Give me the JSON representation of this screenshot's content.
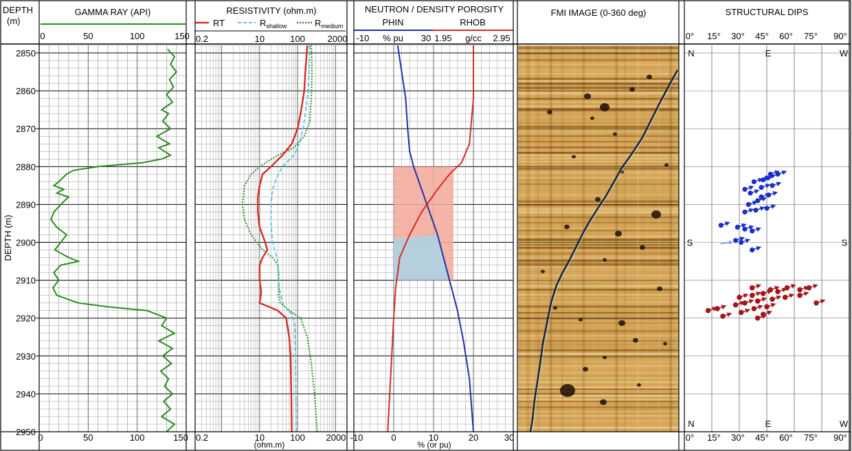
{
  "depth": {
    "title_line1": "DEPTH",
    "title_line2": "(m)",
    "axis_label": "DEPTH (m)",
    "range": [
      2848,
      2950
    ],
    "ticks": [
      2850,
      2860,
      2870,
      2880,
      2890,
      2900,
      2910,
      2920,
      2930,
      2940,
      2950
    ]
  },
  "gamma": {
    "title": "GAMMA RAY (API)",
    "range": [
      0,
      150
    ],
    "top_ticks": [
      "0",
      "50",
      "100",
      "150"
    ],
    "bottom_ticks": [
      "0",
      "50",
      "100",
      "150"
    ],
    "color": "#2a8a1f"
  },
  "resistivity": {
    "title": "RESISTIVITY (ohm.m)",
    "range": [
      0.2,
      2000
    ],
    "scale": "log",
    "top_ticks": [
      "0.2",
      "10",
      "100",
      "2000"
    ],
    "bottom_ticks": [
      "0.2",
      "10",
      "100",
      "2000"
    ],
    "bottom_label": "(ohm.m)",
    "legend": {
      "rt": "RT",
      "rs_main": "R",
      "rs_sub": "shallow",
      "rm_main": "R",
      "rm_sub": "medium"
    },
    "colors": {
      "rt": "#d42a23",
      "shallow": "#5bc3db",
      "medium": "#2a8a1f"
    }
  },
  "porosity": {
    "title": "NEUTRON / DENSITY POROSITY",
    "phin_label": "PHIN",
    "rhob_label": "RHOB",
    "phin_scale": [
      "-10",
      "% pu",
      "30"
    ],
    "rhob_scale": [
      "1.95",
      "g/cc",
      "2.95"
    ],
    "range": [
      -10,
      30
    ],
    "bottom_ticks": [
      "-10",
      "0",
      "10",
      "20",
      "30"
    ],
    "bottom_label": "% (or pu)",
    "colors": {
      "phin": "#1f2fa8",
      "rhob": "#d42a23",
      "gas_fill": "#f4a89a",
      "crossover_fill": "#a9d3e6"
    }
  },
  "fmi": {
    "title": "FMI IMAGE (0-360 deg)",
    "colors": {
      "dark": "#6b3a0c",
      "mid": "#c48431",
      "light": "#f0d49a"
    }
  },
  "dips": {
    "title": "STRUCTURAL DIPS",
    "range": [
      0,
      90
    ],
    "ticks": [
      "0°",
      "15°",
      "30°",
      "45°",
      "60°",
      "75°",
      "90°"
    ],
    "azimuth_top": [
      "N",
      "E",
      "W"
    ],
    "azimuth_mid": [
      "S",
      "S"
    ],
    "azimuth_bottom": [
      "N",
      "E",
      "W"
    ],
    "colors": {
      "blue": "#1b2fc8",
      "red": "#a3171a",
      "faint": "#8fa8e8"
    }
  },
  "chart_data": [
    {
      "type": "line",
      "title": "GAMMA RAY (API)",
      "xlabel": "",
      "ylabel": "DEPTH (m)",
      "xlim": [
        0,
        150
      ],
      "ylim": [
        2950,
        2848
      ],
      "series": [
        {
          "values": [
            [
              131,
              2849
            ],
            [
              138,
              2851
            ],
            [
              134,
              2853
            ],
            [
              140,
              2855
            ],
            [
              133,
              2857
            ],
            [
              137,
              2859
            ],
            [
              130,
              2861
            ],
            [
              136,
              2863
            ],
            [
              125,
              2865
            ],
            [
              132,
              2866
            ],
            [
              126,
              2868
            ],
            [
              134,
              2870
            ],
            [
              120,
              2872
            ],
            [
              133,
              2874
            ],
            [
              122,
              2875
            ],
            [
              134,
              2877
            ],
            [
              125,
              2878
            ],
            [
              105,
              2879
            ],
            [
              60,
              2880
            ],
            [
              35,
              2881
            ],
            [
              28,
              2882
            ],
            [
              20,
              2884
            ],
            [
              15,
              2885
            ],
            [
              25,
              2886
            ],
            [
              18,
              2887
            ],
            [
              30,
              2888
            ],
            [
              22,
              2890
            ],
            [
              15,
              2892
            ],
            [
              12,
              2894
            ],
            [
              18,
              2896
            ],
            [
              28,
              2898
            ],
            [
              22,
              2900
            ],
            [
              16,
              2902
            ],
            [
              30,
              2904
            ],
            [
              40,
              2905
            ],
            [
              22,
              2906
            ],
            [
              15,
              2908
            ],
            [
              20,
              2910
            ],
            [
              14,
              2912
            ],
            [
              18,
              2914
            ],
            [
              40,
              2916
            ],
            [
              70,
              2917
            ],
            [
              110,
              2918
            ],
            [
              130,
              2920
            ],
            [
              125,
              2922
            ],
            [
              138,
              2924
            ],
            [
              122,
              2926
            ],
            [
              136,
              2928
            ],
            [
              126,
              2930
            ],
            [
              135,
              2932
            ],
            [
              124,
              2934
            ],
            [
              132,
              2936
            ],
            [
              128,
              2938
            ],
            [
              136,
              2940
            ],
            [
              127,
              2942
            ],
            [
              134,
              2944
            ],
            [
              125,
              2946
            ],
            [
              138,
              2948
            ],
            [
              130,
              2950
            ]
          ]
        }
      ]
    },
    {
      "type": "line",
      "title": "RESISTIVITY (ohm.m)",
      "xlabel": "(ohm.m)",
      "ylabel": "DEPTH (m)",
      "xscale": "log",
      "xlim": [
        0.2,
        2000
      ],
      "ylim": [
        2950,
        2848
      ],
      "series": [
        {
          "name": "RT",
          "values": [
            [
              180,
              2848
            ],
            [
              160,
              2855
            ],
            [
              150,
              2860
            ],
            [
              120,
              2866
            ],
            [
              100,
              2870
            ],
            [
              70,
              2874
            ],
            [
              40,
              2877
            ],
            [
              20,
              2880
            ],
            [
              12,
              2882
            ],
            [
              10,
              2885
            ],
            [
              9,
              2888
            ],
            [
              9,
              2892
            ],
            [
              10,
              2896
            ],
            [
              14,
              2900
            ],
            [
              16,
              2902
            ],
            [
              12,
              2904
            ],
            [
              10,
              2906
            ],
            [
              10,
              2910
            ],
            [
              11,
              2913
            ],
            [
              10,
              2916
            ],
            [
              30,
              2918
            ],
            [
              50,
              2920
            ],
            [
              60,
              2925
            ],
            [
              65,
              2930
            ],
            [
              68,
              2940
            ],
            [
              70,
              2950
            ]
          ]
        },
        {
          "name": "Rshallow",
          "values": [
            [
              210,
              2848
            ],
            [
              200,
              2855
            ],
            [
              190,
              2860
            ],
            [
              160,
              2866
            ],
            [
              140,
              2870
            ],
            [
              110,
              2874
            ],
            [
              80,
              2877
            ],
            [
              40,
              2880
            ],
            [
              28,
              2883
            ],
            [
              22,
              2886
            ],
            [
              20,
              2890
            ],
            [
              20,
              2895
            ],
            [
              22,
              2900
            ],
            [
              30,
              2905
            ],
            [
              32,
              2908
            ],
            [
              33,
              2912
            ],
            [
              40,
              2916
            ],
            [
              70,
              2919
            ],
            [
              85,
              2922
            ],
            [
              88,
              2930
            ],
            [
              90,
              2940
            ],
            [
              92,
              2950
            ]
          ]
        },
        {
          "name": "Rmedium",
          "values": [
            [
              230,
              2848
            ],
            [
              240,
              2855
            ],
            [
              230,
              2862
            ],
            [
              210,
              2868
            ],
            [
              150,
              2872
            ],
            [
              80,
              2875
            ],
            [
              30,
              2877
            ],
            [
              10,
              2880
            ],
            [
              6,
              2882
            ],
            [
              4,
              2885
            ],
            [
              3.5,
              2890
            ],
            [
              4,
              2894
            ],
            [
              6,
              2898
            ],
            [
              12,
              2902
            ],
            [
              22,
              2904
            ],
            [
              30,
              2906
            ],
            [
              32,
              2910
            ],
            [
              32,
              2914
            ],
            [
              35,
              2916
            ],
            [
              60,
              2918
            ],
            [
              120,
              2920
            ],
            [
              180,
              2925
            ],
            [
              230,
              2932
            ],
            [
              280,
              2940
            ],
            [
              330,
              2950
            ]
          ]
        }
      ]
    },
    {
      "type": "line",
      "title": "NEUTRON / DENSITY POROSITY",
      "xlabel": "% (or pu)",
      "ylabel": "DEPTH (m)",
      "xlim": [
        -10,
        30
      ],
      "ylim": [
        2950,
        2848
      ],
      "series": [
        {
          "name": "PHIN",
          "values": [
            [
              1,
              2848
            ],
            [
              2,
              2855
            ],
            [
              3,
              2862
            ],
            [
              3.5,
              2870
            ],
            [
              4,
              2876
            ],
            [
              5,
              2880
            ],
            [
              7,
              2886
            ],
            [
              9,
              2892
            ],
            [
              11,
              2898
            ],
            [
              12.5,
              2904
            ],
            [
              14,
              2910
            ],
            [
              16,
              2918
            ],
            [
              17.5,
              2926
            ],
            [
              19,
              2936
            ],
            [
              20,
              2950
            ]
          ]
        },
        {
          "name": "RHOB",
          "values": [
            [
              20,
              2848
            ],
            [
              20,
              2856
            ],
            [
              20,
              2862
            ],
            [
              19.5,
              2868
            ],
            [
              19,
              2874
            ],
            [
              17,
              2879
            ],
            [
              14,
              2882
            ],
            [
              11,
              2886
            ],
            [
              7,
              2892
            ],
            [
              4,
              2898
            ],
            [
              1.5,
              2904
            ],
            [
              0.5,
              2912
            ],
            [
              0,
              2920
            ],
            [
              -0.5,
              2930
            ],
            [
              -1,
              2940
            ],
            [
              -1.5,
              2950
            ]
          ]
        }
      ],
      "fills": [
        {
          "name": "gas",
          "from_depth": 2880,
          "to_depth": 2910,
          "x_from": 0,
          "x_to": 15
        },
        {
          "name": "crossover",
          "from_depth": 2893,
          "to_depth": 2910,
          "x_from": 0,
          "x_to": 14
        }
      ]
    },
    {
      "type": "scatter",
      "title": "STRUCTURAL DIPS",
      "xlabel": "",
      "ylabel": "DEPTH (m)",
      "xlim": [
        0,
        90
      ],
      "ylim": [
        2950,
        2848
      ],
      "series": [
        {
          "values": [
            [
              47,
              2882
            ],
            [
              51,
              2882
            ],
            [
              45,
              2883
            ],
            [
              43,
              2883.5
            ],
            [
              38,
              2884
            ],
            [
              48,
              2885
            ],
            [
              42,
              2885.5
            ],
            [
              33,
              2886
            ],
            [
              36,
              2887
            ],
            [
              46,
              2887.5
            ],
            [
              42,
              2888
            ],
            [
              40,
              2889
            ],
            [
              35,
              2890
            ],
            [
              45,
              2891
            ],
            [
              39,
              2891.5
            ],
            [
              33,
              2892
            ],
            [
              20,
              2895.5
            ],
            [
              29,
              2896
            ],
            [
              33,
              2896.5
            ],
            [
              37,
              2897
            ],
            [
              28,
              2899.5
            ],
            [
              31,
              2900
            ],
            [
              37,
              2902
            ]
          ]
        },
        {
          "values": [
            [
              25,
              2900
            ]
          ]
        },
        {
          "values": [
            [
              37,
              2912
            ],
            [
              47,
              2912.5
            ],
            [
              56,
              2912
            ],
            [
              63,
              2912.5
            ],
            [
              68,
              2912
            ],
            [
              51,
              2913
            ],
            [
              43,
              2913.5
            ],
            [
              37,
              2914
            ],
            [
              30,
              2914.5
            ],
            [
              63,
              2914
            ],
            [
              55,
              2914.5
            ],
            [
              48,
              2915
            ],
            [
              40,
              2915.5
            ],
            [
              33,
              2916
            ],
            [
              28,
              2916.5
            ],
            [
              72,
              2916
            ],
            [
              45,
              2917
            ],
            [
              38,
              2917.5
            ],
            [
              18,
              2917.5
            ],
            [
              13,
              2918
            ],
            [
              31,
              2918.5
            ],
            [
              43,
              2919
            ],
            [
              21,
              2919.5
            ],
            [
              40,
              2920
            ]
          ]
        }
      ]
    }
  ]
}
